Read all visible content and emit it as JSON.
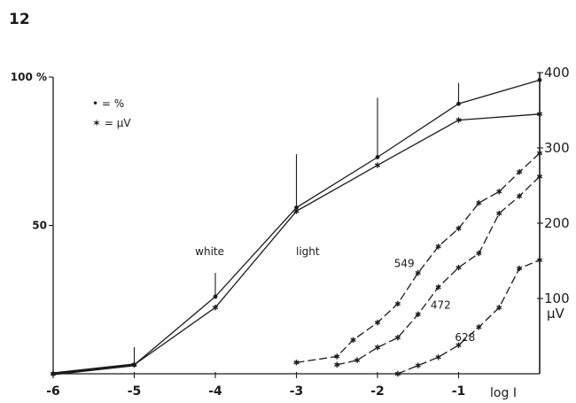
{
  "panel_number": "12",
  "chart_data": {
    "type": "line",
    "title": "",
    "xlabel": "log I",
    "ylabel_left": "%",
    "ylabel_right": "μV",
    "xlim": [
      -6,
      0
    ],
    "ylim_left": [
      0,
      100
    ],
    "ylim_right": [
      0,
      400
    ],
    "x_ticks": [
      {
        "value": -6,
        "label": "-6"
      },
      {
        "value": -5,
        "label": "-5"
      },
      {
        "value": -4,
        "label": "-4"
      },
      {
        "value": -3,
        "label": "-3"
      },
      {
        "value": -2,
        "label": "-2"
      },
      {
        "value": -1,
        "label": "-1"
      }
    ],
    "y_ticks_left": [
      {
        "value": 100,
        "label": "100 %"
      },
      {
        "value": 50,
        "label": "50"
      }
    ],
    "y_ticks_right": [
      {
        "value": 400,
        "label": "400"
      },
      {
        "value": 300,
        "label": "300"
      },
      {
        "value": 200,
        "label": "200"
      },
      {
        "value": 100,
        "label": "100"
      }
    ],
    "legend": [
      {
        "marker": "dot",
        "label": "• = %"
      },
      {
        "marker": "star",
        "label": "✶ = μV"
      }
    ],
    "series": [
      {
        "name": "white light",
        "marker": "dot",
        "axis": "left",
        "dashed": false,
        "x": [
          -6,
          -5,
          -4,
          -3,
          -2,
          -1,
          0
        ],
        "y": [
          0,
          3,
          26,
          56,
          73,
          91,
          99
        ]
      },
      {
        "name": "white light",
        "marker": "star",
        "axis": "right",
        "dashed": false,
        "x": [
          -6,
          -5,
          -4,
          -3,
          -2,
          -1,
          0
        ],
        "y": [
          0,
          12,
          88,
          216,
          277,
          337,
          345
        ]
      },
      {
        "name": "549",
        "marker": "star",
        "axis": "right",
        "dashed": true,
        "x": [
          -3,
          -2.5,
          -2.3,
          -2.0,
          -1.75,
          -1.5,
          -1.25,
          -1.0,
          -0.75,
          -0.5,
          -0.25,
          0
        ],
        "y": [
          15,
          23,
          45,
          68,
          93,
          134,
          169,
          193,
          227,
          242,
          268,
          293
        ]
      },
      {
        "name": "472",
        "marker": "star",
        "axis": "right",
        "dashed": true,
        "x": [
          -2.5,
          -2.25,
          -2.0,
          -1.75,
          -1.5,
          -1.25,
          -1.0,
          -0.75,
          -0.5,
          -0.25,
          0
        ],
        "y": [
          12,
          18,
          35,
          48,
          79,
          115,
          141,
          160,
          213,
          236,
          262
        ]
      },
      {
        "name": "628",
        "marker": "star",
        "axis": "right",
        "dashed": true,
        "x": [
          -1.75,
          -1.5,
          -1.25,
          -1.0,
          -0.75,
          -0.5,
          -0.25,
          0
        ],
        "y": [
          0,
          11,
          22,
          38,
          62,
          88,
          140,
          151
        ]
      }
    ],
    "error_bars": [
      {
        "x": -5,
        "low": 3,
        "high": 9
      },
      {
        "x": -4,
        "low": 26,
        "high": 34
      },
      {
        "x": -3,
        "low": 56,
        "high": 74
      },
      {
        "x": -2,
        "low": 73,
        "high": 93
      },
      {
        "x": -1,
        "low": 91,
        "high": 98
      }
    ],
    "annotations": [
      {
        "text": "white",
        "x": -4.07,
        "y": 40
      },
      {
        "text": "light",
        "x": -2.86,
        "y": 40
      },
      {
        "text": "549",
        "x": -1.67,
        "y": 36
      },
      {
        "text": "472",
        "x": -1.22,
        "y": 22
      },
      {
        "text": "628",
        "x": -0.92,
        "y": 11
      }
    ],
    "grid": false,
    "legend_position": "top-left"
  }
}
